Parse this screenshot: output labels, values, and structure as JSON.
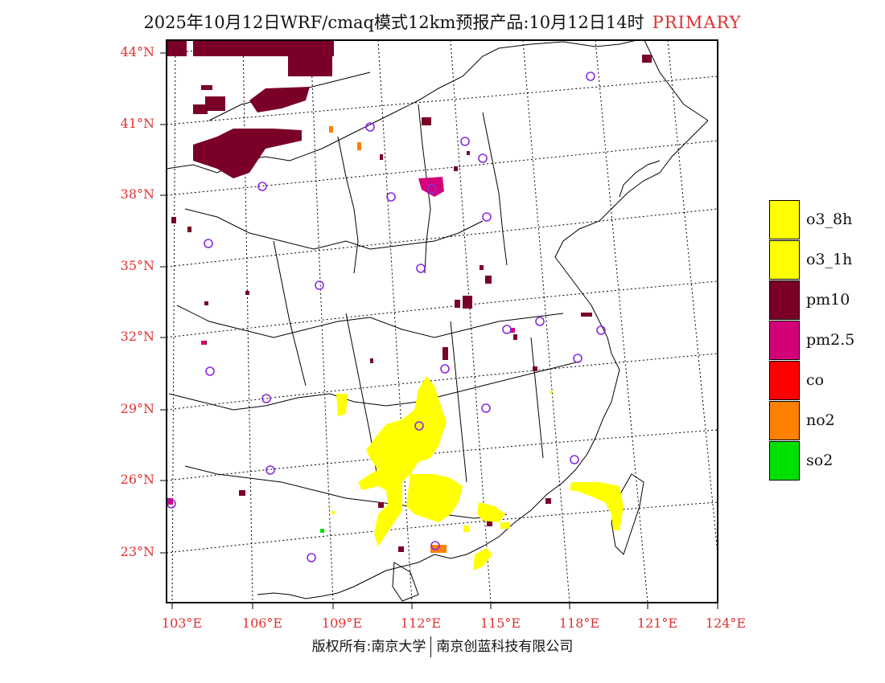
{
  "title": {
    "main": "2025年10月12日WRF/cmaq模式12km预报产品:10月12日14时",
    "tag": "PRIMARY"
  },
  "map": {
    "lat_labels": [
      "44°N",
      "41°N",
      "38°N",
      "35°N",
      "32°N",
      "29°N",
      "26°N",
      "23°N"
    ],
    "lon_labels": [
      "103°E",
      "106°E",
      "109°E",
      "112°E",
      "115°E",
      "118°E",
      "121°E",
      "124°E"
    ],
    "colors": {
      "lat_lon_label": "#e03030",
      "frame": "#000000",
      "site_marker": "#8a2be2"
    }
  },
  "legend": [
    {
      "label": "o3_8h",
      "color": "#ffff00"
    },
    {
      "label": "o3_1h",
      "color": "#ffff00"
    },
    {
      "label": "pm10",
      "color": "#7a0028"
    },
    {
      "label": "pm2.5",
      "color": "#d4007a"
    },
    {
      "label": "co",
      "color": "#ff0000"
    },
    {
      "label": "no2",
      "color": "#ff8000"
    },
    {
      "label": "so2",
      "color": "#00e000"
    }
  ],
  "footer": {
    "left": "版权所有:南京大学",
    "right": "南京创蓝科技有限公司"
  }
}
